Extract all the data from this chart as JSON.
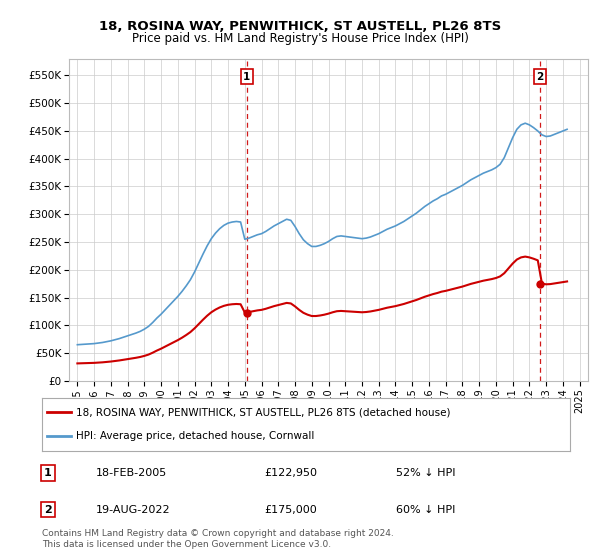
{
  "title": "18, ROSINA WAY, PENWITHICK, ST AUSTELL, PL26 8TS",
  "subtitle": "Price paid vs. HM Land Registry's House Price Index (HPI)",
  "legend_line1": "18, ROSINA WAY, PENWITHICK, ST AUSTELL, PL26 8TS (detached house)",
  "legend_line2": "HPI: Average price, detached house, Cornwall",
  "annotation1_label": "1",
  "annotation1_date": "18-FEB-2005",
  "annotation1_price": "£122,950",
  "annotation1_hpi": "52% ↓ HPI",
  "annotation2_label": "2",
  "annotation2_date": "19-AUG-2022",
  "annotation2_price": "£175,000",
  "annotation2_hpi": "60% ↓ HPI",
  "footer": "Contains HM Land Registry data © Crown copyright and database right 2024.\nThis data is licensed under the Open Government Licence v3.0.",
  "red_color": "#cc0000",
  "blue_color": "#5599cc",
  "marker1_x": 2005.12,
  "marker1_y": 122950,
  "marker2_x": 2022.63,
  "marker2_y": 175000,
  "vline1_x": 2005.12,
  "vline2_x": 2022.63,
  "ylim_min": 0,
  "ylim_max": 580000,
  "xlim_min": 1994.5,
  "xlim_max": 2025.5,
  "yticks": [
    0,
    50000,
    100000,
    150000,
    200000,
    250000,
    300000,
    350000,
    400000,
    450000,
    500000,
    550000
  ],
  "ytick_labels": [
    "£0",
    "£50K",
    "£100K",
    "£150K",
    "£200K",
    "£250K",
    "£300K",
    "£350K",
    "£400K",
    "£450K",
    "£500K",
    "£550K"
  ],
  "xticks": [
    1995,
    1996,
    1997,
    1998,
    1999,
    2000,
    2001,
    2002,
    2003,
    2004,
    2005,
    2006,
    2007,
    2008,
    2009,
    2010,
    2011,
    2012,
    2013,
    2014,
    2015,
    2016,
    2017,
    2018,
    2019,
    2020,
    2021,
    2022,
    2023,
    2024,
    2025
  ],
  "bg_color": "#f0f0f0",
  "plot_bg": "#ffffff",
  "grid_color": "#cccccc"
}
